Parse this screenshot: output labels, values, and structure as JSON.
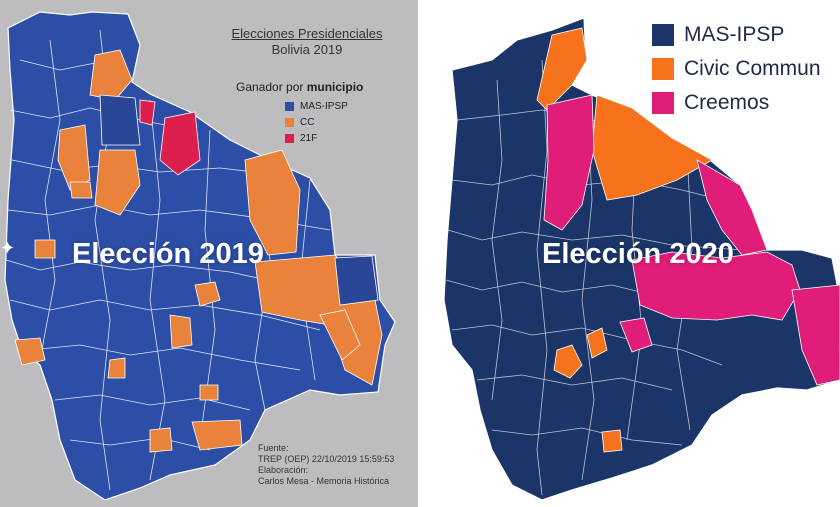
{
  "colors": {
    "mas": "#2d4ea6",
    "cc": "#e9823a",
    "f21": "#dd1f4e",
    "mas2020": "#1c3569",
    "cc2020": "#f7721c",
    "creemos": "#e01d78",
    "border": "#ffffff"
  },
  "left_map": {
    "heading_line1": "Elecciones Presidenciales",
    "heading_line2": "Bolivia 2019",
    "overlay_title": "Elección 2019",
    "legend_title_prefix": "Ganador por ",
    "legend_title_bold": "municipio",
    "legend": [
      {
        "label": "MAS-IPSP",
        "color": "#2d4ea6"
      },
      {
        "label": "CC",
        "color": "#e9823a"
      },
      {
        "label": "21F",
        "color": "#dd1f4e"
      }
    ],
    "source_lines": [
      "Fuente:",
      "TREP (OEP) 22/10/2019 15:59:53",
      "Elaboración:",
      "Carlos Mesa - Memoria Histórica"
    ]
  },
  "right_map": {
    "overlay_title": "Elección 2020",
    "legend": [
      {
        "label": "MAS-IPSP",
        "color": "#1c3569"
      },
      {
        "label": "Civic Commun",
        "color": "#f7721c"
      },
      {
        "label": "Creemos",
        "color": "#e01d78"
      }
    ]
  }
}
